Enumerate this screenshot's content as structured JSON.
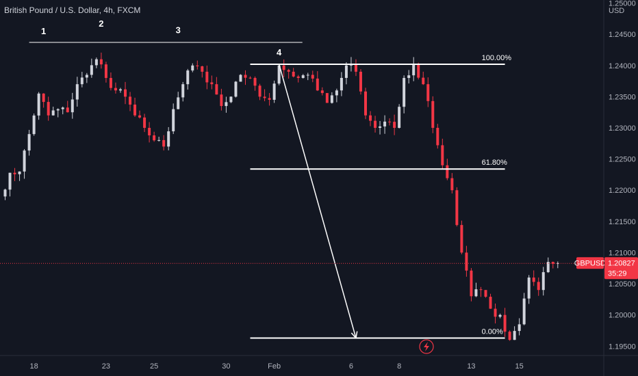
{
  "header": {
    "title": "British Pound / U.S. Dollar, 4h, FXCM"
  },
  "chart_data": {
    "type": "candlestick",
    "symbol": "GBPUSD",
    "currency": "USD",
    "last_price": "1.20827",
    "countdown": "35:29",
    "ylim": [
      1.1935,
      1.2505
    ],
    "y_ticks": [
      "1.25000",
      "1.24500",
      "1.24000",
      "1.23500",
      "1.23000",
      "1.22500",
      "1.22000",
      "1.21500",
      "1.21000",
      "1.20500",
      "1.20000",
      "1.19500"
    ],
    "x_ticks": [
      {
        "label": "18",
        "bar": 6
      },
      {
        "label": "23",
        "bar": 21
      },
      {
        "label": "25",
        "bar": 31
      },
      {
        "label": "30",
        "bar": 46
      },
      {
        "label": "Feb",
        "bar": 56
      },
      {
        "label": "6",
        "bar": 72
      },
      {
        "label": "8",
        "bar": 82
      },
      {
        "label": "13",
        "bar": 97
      },
      {
        "label": "15",
        "bar": 107
      }
    ],
    "key_prices": [
      1.219,
      1.2228,
      1.223,
      1.229,
      1.2355,
      1.232,
      1.233,
      1.2325,
      1.237,
      1.2385,
      1.241,
      1.238,
      1.236,
      1.235,
      1.232,
      1.23,
      1.228,
      1.227,
      1.233,
      1.237,
      1.24,
      1.239,
      1.237,
      1.2335,
      1.235,
      1.2385,
      1.238,
      1.235,
      1.2345,
      1.24,
      1.239,
      1.238,
      1.2385,
      1.236,
      1.234,
      1.236,
      1.24,
      1.239,
      1.232,
      1.23,
      1.231,
      1.23,
      1.238,
      1.2402,
      1.237,
      1.23,
      1.224,
      1.22,
      1.21,
      1.203,
      1.204,
      1.201,
      1.2,
      1.196,
      1.1985,
      1.206,
      1.204,
      1.2085,
      1.2083
    ],
    "annotations": [
      {
        "text": "1",
        "bar": 8,
        "price": 1.245
      },
      {
        "text": "2",
        "bar": 20,
        "price": 1.2462
      },
      {
        "text": "3",
        "bar": 36,
        "price": 1.2452
      },
      {
        "text": "4",
        "bar": 57,
        "price": 1.2416
      }
    ],
    "resistance_line": {
      "price": 1.2437,
      "from_bar": 5,
      "to_bar": 61
    },
    "fib_levels": [
      {
        "label": "100.00%",
        "price": 1.2402
      },
      {
        "label": "61.80%",
        "price": 1.2234
      },
      {
        "label": "0.00%",
        "price": 1.1963
      }
    ],
    "fib_range_bars": [
      51,
      104
    ],
    "arrow": {
      "from_bar": 57,
      "from_price": 1.2402,
      "to_bar": 73,
      "to_price": 1.1963
    }
  },
  "colors": {
    "background": "#131722",
    "bull": "#d1d4dc",
    "bear": "#f23645",
    "lines": "#ffffff",
    "axis_text": "#b2b5be",
    "badge": "#f23645",
    "price_line": "#f23645"
  },
  "icons": {
    "flash": "lightning-bolt-icon"
  }
}
